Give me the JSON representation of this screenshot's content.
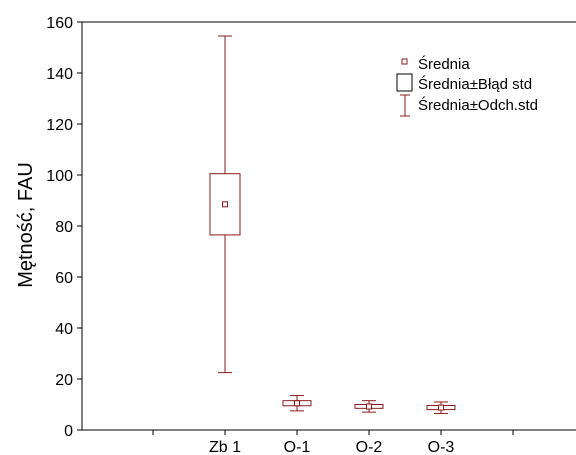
{
  "chart_data": {
    "type": "box",
    "title": "",
    "xlabel": "",
    "ylabel": "Mętność, FAU",
    "ylim": [
      0,
      160
    ],
    "y_ticks": [
      "0",
      "20",
      "40",
      "60",
      "80",
      "100",
      "120",
      "140",
      "160"
    ],
    "categories": [
      "Zb 1",
      "O-1",
      "O-2",
      "O-3"
    ],
    "series": [
      {
        "category": "Zb 1",
        "mean": 88.5,
        "se_low": 76.5,
        "se_high": 100.5,
        "sd_low": 22.5,
        "sd_high": 154.5
      },
      {
        "category": "O-1",
        "mean": 10.5,
        "se_low": 9.5,
        "se_high": 11.5,
        "sd_low": 7.5,
        "sd_high": 13.5
      },
      {
        "category": "O-2",
        "mean": 9.2,
        "se_low": 8.5,
        "se_high": 10.0,
        "sd_low": 7.0,
        "sd_high": 11.5
      },
      {
        "category": "O-3",
        "mean": 8.8,
        "se_low": 8.0,
        "se_high": 9.6,
        "sd_low": 6.5,
        "sd_high": 11.0
      }
    ],
    "legend": {
      "position": "top-right",
      "items": [
        "Średnia",
        "Średnia±Błąd std",
        "Średnia±Odch.std"
      ]
    },
    "colors": {
      "series": "#8b1a1a",
      "axis": "#000000",
      "box_fill": "#ffffff"
    },
    "grid": false
  }
}
